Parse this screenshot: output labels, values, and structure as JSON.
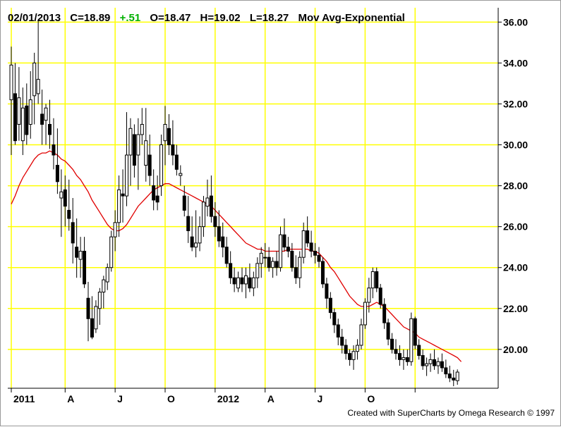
{
  "header": {
    "date": "02/01/2013",
    "close": "C=18.89",
    "change": "+.51",
    "open": "O=18.47",
    "high": "H=19.02",
    "low": "L=18.27",
    "indicator": "Mov Avg-Exponential"
  },
  "credit": "Created with SuperCharts by Omega Research © 1997",
  "colors": {
    "background": "#ffffff",
    "grid": "#ffff00",
    "candle": "#000000",
    "ma_line": "#e00000",
    "change_text": "#00b000"
  },
  "chart_data": {
    "type": "candlestick",
    "title": "",
    "xlabel": "",
    "ylabel": "",
    "ylim": [
      18.1,
      36.7
    ],
    "grid": true,
    "y_ticks": [
      20,
      22,
      24,
      26,
      28,
      30,
      32,
      34,
      36
    ],
    "y_tick_labels": [
      "20.00",
      "22.00",
      "24.00",
      "26.00",
      "28.00",
      "30.00",
      "32.00",
      "34.00",
      "36.00"
    ],
    "x_ticks": [
      {
        "label": "2011",
        "week": 0
      },
      {
        "label": "A",
        "week": 14
      },
      {
        "label": "J",
        "week": 27
      },
      {
        "label": "O",
        "week": 40
      },
      {
        "label": "2012",
        "week": 53
      },
      {
        "label": "A",
        "week": 66
      },
      {
        "label": "J",
        "week": 79
      },
      {
        "label": "O",
        "week": 92
      },
      {
        "label": "",
        "week": 105
      }
    ],
    "candles": [
      [
        32.2,
        34.8,
        29.5,
        33.9
      ],
      [
        32.5,
        34.0,
        30.0,
        30.2
      ],
      [
        31.0,
        33.8,
        30.2,
        32.3
      ],
      [
        30.2,
        32.8,
        29.5,
        31.8
      ],
      [
        31.9,
        33.0,
        30.0,
        30.5
      ],
      [
        31.0,
        33.6,
        30.3,
        32.2
      ],
      [
        32.4,
        34.5,
        31.0,
        34.0
      ],
      [
        32.5,
        36.1,
        32.0,
        33.2
      ],
      [
        31.5,
        32.7,
        30.0,
        31.0
      ],
      [
        31.2,
        32.0,
        30.0,
        31.8
      ],
      [
        31.0,
        32.2,
        29.8,
        30.5
      ],
      [
        30.0,
        31.3,
        28.8,
        29.5
      ],
      [
        29.0,
        30.8,
        27.6,
        28.2
      ],
      [
        27.4,
        28.8,
        25.5,
        27.7
      ],
      [
        27.8,
        28.5,
        26.0,
        27.0
      ],
      [
        26.8,
        28.3,
        25.8,
        26.4
      ],
      [
        26.2,
        27.4,
        24.2,
        25.2
      ],
      [
        25.0,
        26.4,
        23.5,
        24.5
      ],
      [
        24.4,
        25.5,
        23.5,
        24.8
      ],
      [
        24.8,
        25.5,
        23.0,
        23.2
      ],
      [
        22.5,
        23.3,
        20.4,
        21.5
      ],
      [
        21.5,
        22.6,
        20.5,
        20.6
      ],
      [
        21.0,
        22.4,
        20.8,
        22.1
      ],
      [
        22.0,
        23.0,
        21.2,
        22.8
      ],
      [
        22.8,
        23.6,
        22.0,
        23.4
      ],
      [
        23.3,
        24.2,
        22.9,
        24.0
      ],
      [
        24.0,
        25.8,
        23.8,
        25.5
      ],
      [
        25.5,
        26.8,
        24.8,
        26.2
      ],
      [
        26.2,
        28.5,
        25.5,
        27.8
      ],
      [
        27.6,
        28.8,
        26.2,
        27.5
      ],
      [
        27.5,
        31.6,
        27.0,
        29.5
      ],
      [
        29.5,
        31.3,
        28.0,
        30.8
      ],
      [
        30.5,
        31.0,
        28.4,
        29.0
      ],
      [
        29.5,
        31.3,
        27.8,
        30.5
      ],
      [
        30.5,
        31.8,
        30.0,
        31.0
      ],
      [
        29.0,
        31.8,
        28.2,
        30.2
      ],
      [
        29.5,
        30.5,
        28.0,
        28.5
      ],
      [
        28.0,
        28.8,
        26.8,
        27.3
      ],
      [
        27.5,
        28.5,
        26.8,
        27.2
      ],
      [
        28.0,
        30.5,
        27.5,
        30.0
      ],
      [
        30.2,
        31.9,
        29.0,
        31.0
      ],
      [
        30.8,
        31.5,
        29.5,
        30.0
      ],
      [
        30.0,
        31.2,
        29.0,
        29.5
      ],
      [
        29.5,
        30.0,
        28.5,
        28.8
      ],
      [
        28.5,
        29.0,
        28.0,
        28.6
      ],
      [
        27.5,
        28.0,
        26.5,
        26.8
      ],
      [
        26.5,
        27.5,
        25.2,
        25.8
      ],
      [
        25.5,
        26.5,
        24.8,
        25.0
      ],
      [
        25.0,
        26.8,
        24.5,
        25.2
      ],
      [
        25.2,
        26.5,
        24.8,
        26.0
      ],
      [
        26.0,
        27.5,
        25.5,
        27.2
      ],
      [
        27.0,
        28.3,
        26.5,
        27.4
      ],
      [
        27.5,
        28.5,
        26.2,
        26.5
      ],
      [
        26.5,
        27.2,
        25.5,
        26.0
      ],
      [
        26.0,
        26.8,
        25.0,
        25.3
      ],
      [
        25.5,
        26.2,
        24.5,
        25.0
      ],
      [
        25.0,
        25.5,
        24.0,
        24.2
      ],
      [
        24.2,
        24.8,
        23.2,
        23.5
      ],
      [
        23.5,
        24.0,
        22.8,
        23.2
      ],
      [
        23.0,
        23.8,
        22.8,
        23.5
      ],
      [
        23.5,
        24.0,
        22.8,
        23.2
      ],
      [
        23.2,
        24.0,
        22.5,
        23.6
      ],
      [
        23.5,
        24.2,
        22.8,
        23.0
      ],
      [
        23.0,
        23.8,
        22.6,
        23.5
      ],
      [
        23.5,
        24.5,
        23.0,
        24.2
      ],
      [
        24.2,
        25.0,
        23.5,
        24.7
      ],
      [
        24.5,
        25.2,
        24.0,
        24.5
      ],
      [
        24.5,
        25.0,
        23.8,
        24.0
      ],
      [
        24.0,
        24.5,
        23.5,
        24.3
      ],
      [
        24.3,
        24.8,
        23.6,
        24.0
      ],
      [
        24.0,
        26.0,
        23.8,
        25.6
      ],
      [
        25.6,
        26.4,
        24.8,
        25.0
      ],
      [
        25.0,
        25.5,
        24.5,
        24.8
      ],
      [
        24.8,
        25.2,
        23.8,
        24.0
      ],
      [
        24.0,
        24.6,
        23.2,
        23.5
      ],
      [
        23.5,
        24.8,
        23.0,
        24.5
      ],
      [
        24.5,
        26.2,
        24.2,
        25.8
      ],
      [
        25.8,
        26.5,
        25.0,
        25.2
      ],
      [
        25.2,
        25.8,
        24.5,
        24.8
      ],
      [
        24.8,
        25.2,
        24.2,
        24.6
      ],
      [
        24.6,
        25.0,
        24.0,
        24.3
      ],
      [
        24.3,
        24.5,
        23.0,
        23.2
      ],
      [
        23.2,
        23.5,
        22.0,
        22.5
      ],
      [
        22.5,
        22.8,
        21.5,
        21.8
      ],
      [
        21.8,
        22.0,
        20.8,
        21.2
      ],
      [
        21.2,
        21.5,
        20.2,
        20.6
      ],
      [
        20.6,
        21.0,
        19.8,
        20.2
      ],
      [
        20.2,
        20.5,
        19.5,
        19.8
      ],
      [
        19.8,
        20.0,
        19.2,
        19.5
      ],
      [
        19.5,
        20.2,
        19.0,
        19.9
      ],
      [
        19.9,
        20.5,
        19.5,
        20.2
      ],
      [
        20.2,
        21.5,
        20.0,
        21.2
      ],
      [
        21.2,
        22.5,
        21.0,
        22.3
      ],
      [
        22.3,
        23.5,
        21.8,
        23.0
      ],
      [
        23.0,
        24.0,
        22.5,
        23.8
      ],
      [
        23.8,
        24.0,
        22.8,
        23.0
      ],
      [
        23.0,
        23.2,
        22.0,
        22.2
      ],
      [
        22.2,
        22.5,
        21.0,
        21.3
      ],
      [
        21.3,
        21.5,
        20.2,
        20.5
      ],
      [
        20.5,
        20.8,
        19.8,
        20.0
      ],
      [
        20.0,
        20.5,
        19.5,
        19.8
      ],
      [
        19.8,
        20.2,
        19.2,
        19.5
      ],
      [
        19.5,
        20.0,
        19.0,
        19.6
      ],
      [
        19.6,
        20.0,
        19.2,
        19.4
      ],
      [
        19.4,
        21.8,
        19.2,
        21.5
      ],
      [
        21.5,
        21.6,
        20.0,
        20.2
      ],
      [
        20.2,
        20.5,
        19.5,
        19.7
      ],
      [
        19.7,
        20.0,
        19.0,
        19.2
      ],
      [
        19.2,
        19.6,
        18.7,
        19.3
      ],
      [
        19.3,
        19.8,
        18.9,
        19.5
      ],
      [
        19.5,
        20.0,
        19.0,
        19.2
      ],
      [
        19.2,
        19.6,
        18.8,
        19.4
      ],
      [
        19.4,
        19.8,
        18.9,
        19.1
      ],
      [
        19.1,
        19.5,
        18.6,
        18.8
      ],
      [
        18.8,
        19.2,
        18.4,
        18.6
      ],
      [
        18.6,
        19.0,
        18.2,
        18.5
      ],
      [
        18.47,
        19.02,
        18.27,
        18.89
      ]
    ],
    "ma_series": {
      "color": "#e00000",
      "values": [
        27.1,
        27.5,
        28.0,
        28.4,
        28.7,
        29.0,
        29.3,
        29.5,
        29.6,
        29.6,
        29.7,
        29.6,
        29.5,
        29.3,
        29.2,
        29.0,
        28.8,
        28.5,
        28.3,
        28.0,
        27.7,
        27.3,
        27.0,
        26.7,
        26.4,
        26.1,
        25.9,
        25.8,
        25.8,
        25.9,
        26.1,
        26.4,
        26.7,
        27.0,
        27.2,
        27.4,
        27.6,
        27.8,
        27.9,
        28.0,
        28.1,
        28.1,
        28.0,
        27.9,
        27.8,
        27.7,
        27.6,
        27.5,
        27.4,
        27.3,
        27.2,
        27.1,
        27.0,
        26.8,
        26.6,
        26.4,
        26.2,
        26.0,
        25.8,
        25.6,
        25.4,
        25.2,
        25.1,
        25.0,
        24.9,
        24.9,
        24.8,
        24.8,
        24.8,
        24.8,
        24.8,
        24.8,
        24.9,
        24.9,
        24.9,
        24.9,
        24.9,
        24.9,
        24.8,
        24.8,
        24.7,
        24.5,
        24.3,
        24.0,
        23.8,
        23.5,
        23.2,
        22.9,
        22.6,
        22.4,
        22.2,
        22.1,
        22.1,
        22.1,
        22.2,
        22.3,
        22.2,
        22.1,
        21.9,
        21.7,
        21.5,
        21.3,
        21.1,
        21.0,
        20.9,
        20.8,
        20.6,
        20.5,
        20.4,
        20.3,
        20.2,
        20.1,
        20.0,
        19.9,
        19.8,
        19.7,
        19.6,
        19.4
      ]
    }
  }
}
